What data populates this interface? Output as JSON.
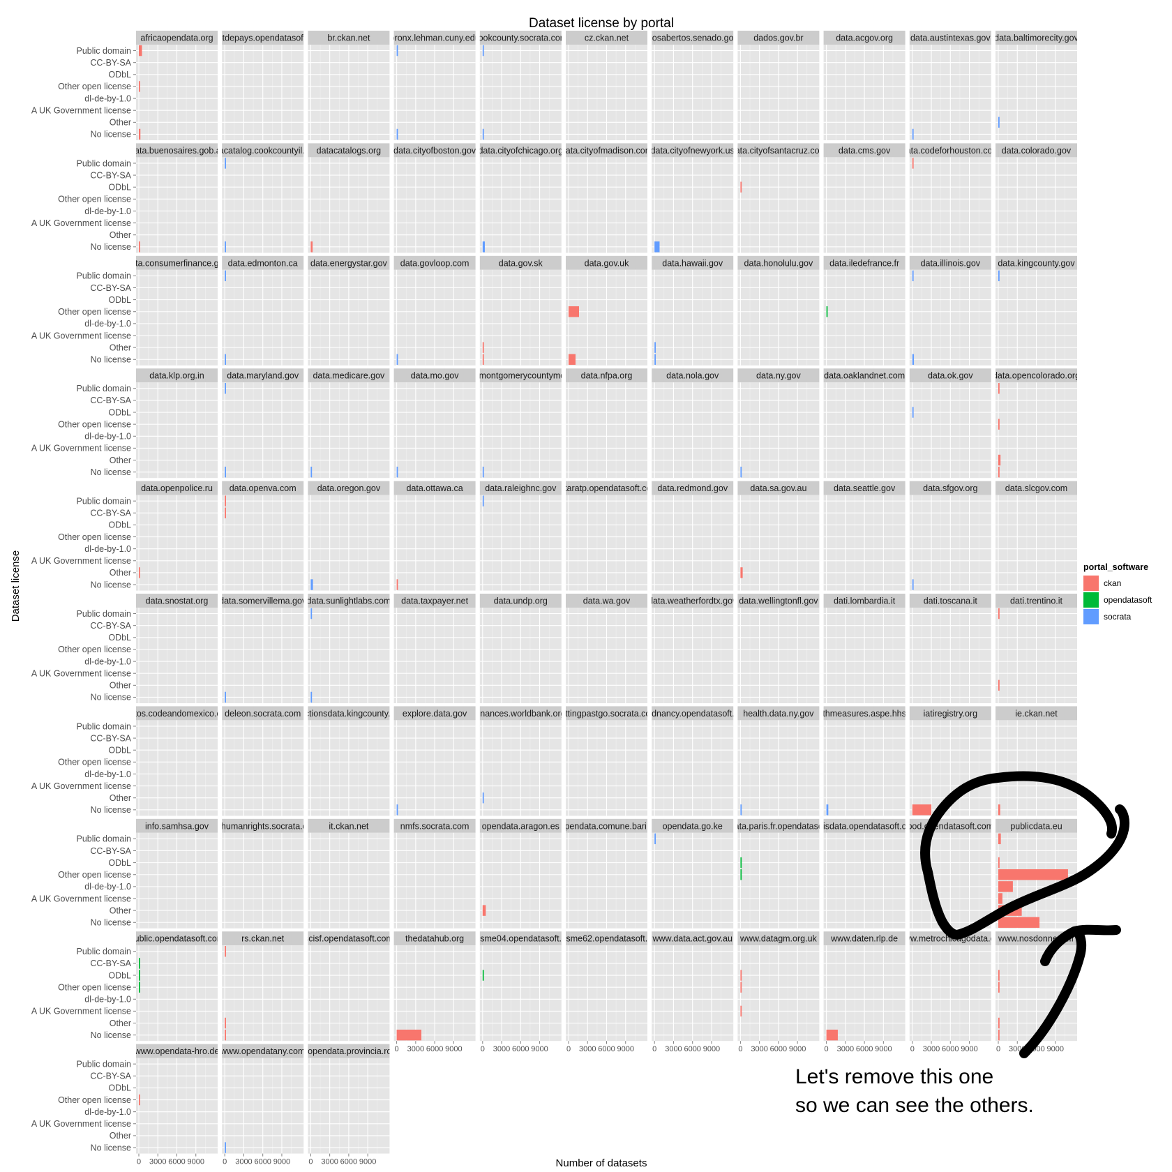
{
  "chart_data": {
    "type": "bar",
    "orientation": "horizontal",
    "faceted": true,
    "title": "Dataset license by portal",
    "xlabel": "Number of datasets",
    "ylabel": "Dataset license",
    "xlim": [
      0,
      12000
    ],
    "x_ticks": [
      0,
      3000,
      6000,
      9000
    ],
    "x_tick_labels": [
      "0",
      "3000",
      "6000",
      "9000"
    ],
    "categories": [
      "Public domain",
      "CC-BY-SA",
      "ODbL",
      "Other open license",
      "dl-de-by-1.0",
      "A UK Government license",
      "Other",
      "No license"
    ],
    "grid": true,
    "legend": {
      "title": "portal_software",
      "position": "right",
      "entries": [
        {
          "key": "ckan",
          "label": "ckan",
          "color": "#f8766d"
        },
        {
          "key": "opendatasoft",
          "label": "opendatasoft",
          "color": "#00ba38"
        },
        {
          "key": "socrata",
          "label": "socrata",
          "color": "#619cff"
        }
      ]
    },
    "facets": [
      {
        "name": "africaopendata.org",
        "software": "ckan",
        "values": {
          "Public domain": 500,
          "Other open license": 150,
          "No license": 250
        }
      },
      {
        "name": "bistrotdepays.opendatasoft.com",
        "software": "opendatasoft",
        "values": {}
      },
      {
        "name": "br.ckan.net",
        "software": "ckan",
        "values": {}
      },
      {
        "name": "bronx.lehman.cuny.edu",
        "software": "socrata",
        "values": {
          "Public domain": 150,
          "No license": 100
        }
      },
      {
        "name": "cookcounty.socrata.com",
        "software": "socrata",
        "values": {
          "Public domain": 200,
          "No license": 100
        }
      },
      {
        "name": "cz.ckan.net",
        "software": "ckan",
        "values": {}
      },
      {
        "name": "dadosabertos.senado.gov.br",
        "software": "ckan",
        "values": {}
      },
      {
        "name": "dados.gov.br",
        "software": "ckan",
        "values": {}
      },
      {
        "name": "data.acgov.org",
        "software": "socrata",
        "values": {}
      },
      {
        "name": "data.austintexas.gov",
        "software": "socrata",
        "values": {
          "No license": 100
        }
      },
      {
        "name": "data.baltimorecity.gov",
        "software": "socrata",
        "values": {
          "Other": 100
        }
      },
      {
        "name": "data.buenosaires.gob.ar",
        "software": "ckan",
        "values": {
          "No license": 60
        }
      },
      {
        "name": "datacatalog.cookcountyil.gov",
        "software": "socrata",
        "values": {
          "Public domain": 200,
          "No license": 150
        }
      },
      {
        "name": "datacatalogs.org",
        "software": "ckan",
        "values": {
          "No license": 300
        }
      },
      {
        "name": "data.cityofboston.gov",
        "software": "socrata",
        "values": {}
      },
      {
        "name": "data.cityofchicago.org",
        "software": "socrata",
        "values": {
          "No license": 350
        }
      },
      {
        "name": "data.cityofmadison.com",
        "software": "socrata",
        "values": {}
      },
      {
        "name": "data.cityofnewyork.us",
        "software": "socrata",
        "values": {
          "No license": 800
        }
      },
      {
        "name": "data.cityofsantacruz.com",
        "software": "ckan",
        "values": {
          "ODbL": 80
        }
      },
      {
        "name": "data.cms.gov",
        "software": "socrata",
        "values": {}
      },
      {
        "name": "data.codeforhouston.com",
        "software": "ckan",
        "values": {
          "Public domain": 150
        }
      },
      {
        "name": "data.colorado.gov",
        "software": "socrata",
        "values": {}
      },
      {
        "name": "data.consumerfinance.gov",
        "software": "socrata",
        "values": {}
      },
      {
        "name": "data.edmonton.ca",
        "software": "socrata",
        "values": {
          "Public domain": 100,
          "No license": 200
        }
      },
      {
        "name": "data.energystar.gov",
        "software": "socrata",
        "values": {}
      },
      {
        "name": "data.govloop.com",
        "software": "socrata",
        "values": {
          "No license": 100
        }
      },
      {
        "name": "data.gov.sk",
        "software": "ckan",
        "values": {
          "Other": 80,
          "No license": 150
        }
      },
      {
        "name": "data.gov.uk",
        "software": "ckan",
        "values": {
          "Other open license": 1650,
          "No license": 1100
        }
      },
      {
        "name": "data.hawaii.gov",
        "software": "socrata",
        "values": {
          "Other": 100,
          "No license": 100
        }
      },
      {
        "name": "data.honolulu.gov",
        "software": "socrata",
        "values": {}
      },
      {
        "name": "data.iledefrance.fr",
        "software": "opendatasoft",
        "values": {
          "Other open license": 150
        }
      },
      {
        "name": "data.illinois.gov",
        "software": "socrata",
        "values": {
          "Public domain": 100,
          "No license": 250
        }
      },
      {
        "name": "data.kingcounty.gov",
        "software": "socrata",
        "values": {
          "Public domain": 150
        }
      },
      {
        "name": "data.klp.org.in",
        "software": "ckan",
        "values": {}
      },
      {
        "name": "data.maryland.gov",
        "software": "socrata",
        "values": {
          "Public domain": 100,
          "No license": 100
        }
      },
      {
        "name": "data.medicare.gov",
        "software": "socrata",
        "values": {
          "No license": 100
        }
      },
      {
        "name": "data.mo.gov",
        "software": "socrata",
        "values": {
          "No license": 100
        }
      },
      {
        "name": "data.montgomerycountymd.gov",
        "software": "socrata",
        "values": {
          "No license": 100
        }
      },
      {
        "name": "data.nfpa.org",
        "software": "socrata",
        "values": {}
      },
      {
        "name": "data.nola.gov",
        "software": "socrata",
        "values": {}
      },
      {
        "name": "data.ny.gov",
        "software": "socrata",
        "values": {
          "No license": 200
        }
      },
      {
        "name": "data.oaklandnet.com",
        "software": "socrata",
        "values": {}
      },
      {
        "name": "data.ok.gov",
        "software": "socrata",
        "values": {
          "ODbL": 100
        }
      },
      {
        "name": "data.opencolorado.org",
        "software": "ckan",
        "values": {
          "Public domain": 80,
          "Other open license": 80,
          "Other": 350,
          "No license": 150
        }
      },
      {
        "name": "data.openpolice.ru",
        "software": "ckan",
        "values": {
          "Other": 100
        }
      },
      {
        "name": "data.openva.com",
        "software": "ckan",
        "values": {
          "Public domain": 100,
          "CC-BY-SA": 80
        }
      },
      {
        "name": "data.oregon.gov",
        "software": "socrata",
        "values": {
          "No license": 350
        }
      },
      {
        "name": "data.ottawa.ca",
        "software": "ckan",
        "values": {
          "No license": 100
        }
      },
      {
        "name": "data.raleighnc.gov",
        "software": "socrata",
        "values": {
          "Public domain": 100
        }
      },
      {
        "name": "dataratp.opendatasoft.com",
        "software": "opendatasoft",
        "values": {}
      },
      {
        "name": "data.redmond.gov",
        "software": "socrata",
        "values": {}
      },
      {
        "name": "data.sa.gov.au",
        "software": "ckan",
        "values": {
          "Other": 350
        }
      },
      {
        "name": "data.seattle.gov",
        "software": "socrata",
        "values": {}
      },
      {
        "name": "data.sfgov.org",
        "software": "socrata",
        "values": {
          "No license": 150
        }
      },
      {
        "name": "data.slcgov.com",
        "software": "socrata",
        "values": {}
      },
      {
        "name": "data.snostat.org",
        "software": "socrata",
        "values": {}
      },
      {
        "name": "data.somervillema.gov",
        "software": "socrata",
        "values": {
          "No license": 150
        }
      },
      {
        "name": "data.sunlightlabs.com",
        "software": "socrata",
        "values": {
          "Public domain": 100,
          "No license": 100
        }
      },
      {
        "name": "data.taxpayer.net",
        "software": "socrata",
        "values": {}
      },
      {
        "name": "data.undp.org",
        "software": "socrata",
        "values": {}
      },
      {
        "name": "data.wa.gov",
        "software": "socrata",
        "values": {}
      },
      {
        "name": "data.weatherfordtx.gov",
        "software": "socrata",
        "values": {}
      },
      {
        "name": "data.wellingtonfl.gov",
        "software": "socrata",
        "values": {}
      },
      {
        "name": "dati.lombardia.it",
        "software": "socrata",
        "values": {}
      },
      {
        "name": "dati.toscana.it",
        "software": "ckan",
        "values": {}
      },
      {
        "name": "dati.trentino.it",
        "software": "ckan",
        "values": {
          "Public domain": 100,
          "Other": 80
        }
      },
      {
        "name": "datos.codeandomexico.org",
        "software": "ckan",
        "values": {}
      },
      {
        "name": "deleon.socrata.com",
        "software": "socrata",
        "values": {}
      },
      {
        "name": "electionsdata.kingcounty.gov",
        "software": "socrata",
        "values": {}
      },
      {
        "name": "explore.data.gov",
        "software": "socrata",
        "values": {
          "No license": 100
        }
      },
      {
        "name": "finances.worldbank.org",
        "software": "socrata",
        "values": {
          "Other": 100
        }
      },
      {
        "name": "gettingpastgo.socrata.com",
        "software": "socrata",
        "values": {}
      },
      {
        "name": "grandnancy.opendatasoft.com",
        "software": "opendatasoft",
        "values": {}
      },
      {
        "name": "health.data.ny.gov",
        "software": "socrata",
        "values": {
          "No license": 100
        }
      },
      {
        "name": "healthmeasures.aspe.hhs.gov",
        "software": "socrata",
        "values": {
          "No license": 300
        }
      },
      {
        "name": "iatiregistry.org",
        "software": "ckan",
        "values": {
          "No license": 3000
        }
      },
      {
        "name": "ie.ckan.net",
        "software": "ckan",
        "values": {
          "No license": 300
        }
      },
      {
        "name": "info.samhsa.gov",
        "software": "socrata",
        "values": {}
      },
      {
        "name": "iranhumanrights.socrata.com",
        "software": "socrata",
        "values": {}
      },
      {
        "name": "it.ckan.net",
        "software": "ckan",
        "values": {}
      },
      {
        "name": "nmfs.socrata.com",
        "software": "socrata",
        "values": {}
      },
      {
        "name": "opendata.aragon.es",
        "software": "ckan",
        "values": {
          "Other": 500
        }
      },
      {
        "name": "opendata.comune.bari.it",
        "software": "ckan",
        "values": {}
      },
      {
        "name": "opendata.go.ke",
        "software": "socrata",
        "values": {
          "Public domain": 200
        }
      },
      {
        "name": "opendata.paris.fr.opendatasoft.com",
        "software": "opendatasoft",
        "values": {
          "ODbL": 100,
          "Other open license": 100
        }
      },
      {
        "name": "parisdata.opendatasoft.com",
        "software": "opendatasoft",
        "values": {}
      },
      {
        "name": "pod.opendatasoft.com",
        "software": "opendatasoft",
        "values": {}
      },
      {
        "name": "publicdata.eu",
        "software": "ckan",
        "values": {
          "Public domain": 400,
          "ODbL": 100,
          "Other open license": 11000,
          "dl-de-by-1.0": 2300,
          "A UK Government license": 650,
          "Other": 3700,
          "No license": 6500
        }
      },
      {
        "name": "public.opendatasoft.com",
        "software": "opendatasoft",
        "values": {
          "CC-BY-SA": 80,
          "ODbL": 80,
          "Other open license": 80
        }
      },
      {
        "name": "rs.ckan.net",
        "software": "ckan",
        "values": {
          "Public domain": 200,
          "Other": 80,
          "No license": 80
        }
      },
      {
        "name": "scisf.opendatasoft.com",
        "software": "opendatasoft",
        "values": {}
      },
      {
        "name": "thedatahub.org",
        "software": "ckan",
        "values": {
          "No license": 3900
        }
      },
      {
        "name": "tourisme04.opendatasoft.com",
        "software": "opendatasoft",
        "values": {
          "ODbL": 150
        }
      },
      {
        "name": "tourisme62.opendatasoft.com",
        "software": "opendatasoft",
        "values": {}
      },
      {
        "name": "www.data.act.gov.au",
        "software": "socrata",
        "values": {}
      },
      {
        "name": "www.datagm.org.uk",
        "software": "ckan",
        "values": {
          "ODbL": 80,
          "Other open license": 80,
          "A UK Government license": 150
        }
      },
      {
        "name": "www.daten.rlp.de",
        "software": "ckan",
        "values": {
          "No license": 1800
        }
      },
      {
        "name": "www.metrochicagodata.org",
        "software": "ckan",
        "values": {}
      },
      {
        "name": "www.nosdonnees.fr",
        "software": "ckan",
        "values": {
          "ODbL": 80,
          "Other open license": 80,
          "Other": 80,
          "No license": 80
        }
      },
      {
        "name": "www.opendata-hro.de",
        "software": "ckan",
        "values": {
          "Other open license": 150
        }
      },
      {
        "name": "www.opendatany.com",
        "software": "socrata",
        "values": {
          "No license": 150
        }
      },
      {
        "name": "www.opendata.provincia.roma.it",
        "software": "ckan",
        "values": {}
      }
    ],
    "annotation": "Let's remove this one so we can see the others."
  },
  "annotation_lines": [
    "Let's remove this one",
    "so we can see the others."
  ]
}
